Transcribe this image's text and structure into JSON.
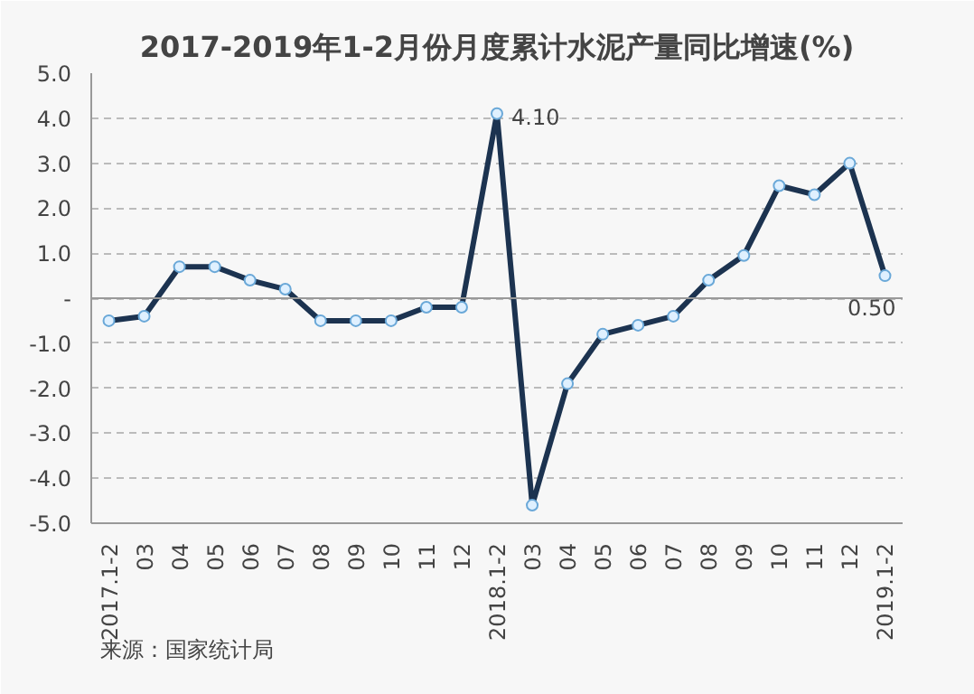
{
  "chart_data": {
    "type": "line",
    "title": "2017-2019年1-2月份月度累计水泥产量同比增速(%)",
    "categories": [
      "2017.1-2",
      "03",
      "04",
      "05",
      "06",
      "07",
      "08",
      "09",
      "10",
      "11",
      "12",
      "2018.1-2",
      "03",
      "04",
      "05",
      "06",
      "07",
      "08",
      "09",
      "10",
      "11",
      "12",
      "2019.1-2"
    ],
    "series": [
      {
        "color": "#1c3350",
        "values": [
          -0.5,
          -0.4,
          0.7,
          0.7,
          0.4,
          0.2,
          -0.5,
          -0.5,
          -0.5,
          -0.2,
          -0.2,
          4.1,
          -4.6,
          -1.9,
          -0.8,
          -0.6,
          -0.4,
          0.4,
          0.95,
          2.5,
          2.3,
          3.0,
          0.5
        ],
        "value_labels": [
          null,
          null,
          null,
          null,
          null,
          null,
          null,
          null,
          null,
          null,
          null,
          "4.10",
          null,
          null,
          null,
          null,
          null,
          null,
          null,
          null,
          null,
          null,
          "0.50"
        ]
      }
    ],
    "ylim": [
      -5,
      5
    ],
    "yticks": [
      {
        "value": -5,
        "label": "-5.0"
      },
      {
        "value": -4,
        "label": "-4.0"
      },
      {
        "value": -3,
        "label": "-3.0"
      },
      {
        "value": -2,
        "label": "-2.0"
      },
      {
        "value": -1,
        "label": "-1.0"
      },
      {
        "value": 0,
        "label": "-"
      },
      {
        "value": 1,
        "label": "1.0"
      },
      {
        "value": 2,
        "label": "2.0"
      },
      {
        "value": 3,
        "label": "3.0"
      },
      {
        "value": 4,
        "label": "4.0"
      },
      {
        "value": 5,
        "label": "5.0"
      }
    ],
    "grid": "y",
    "marker": "circle",
    "line_style": "solid",
    "annotations": [
      "来源：国家统计局"
    ]
  }
}
